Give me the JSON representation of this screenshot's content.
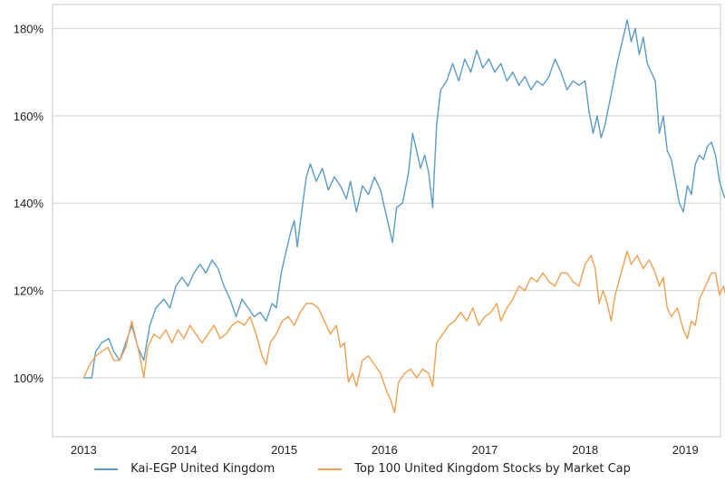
{
  "chart_data": {
    "type": "line",
    "title": "",
    "xlabel": "",
    "ylabel": "",
    "x_ticks": [
      2013,
      2014,
      2015,
      2016,
      2017,
      2018,
      2019
    ],
    "x_tick_labels": [
      "2013",
      "2014",
      "2015",
      "2016",
      "2017",
      "2018",
      "2019"
    ],
    "y_ticks": [
      100,
      120,
      140,
      160,
      180
    ],
    "y_tick_labels": [
      "100%",
      "120%",
      "140%",
      "160%",
      "180%"
    ],
    "xlim": [
      2012.69,
      2019.35
    ],
    "ylim": [
      86.5,
      185.5
    ],
    "grid": "horizontal",
    "legend_position": "bottom-center",
    "series": [
      {
        "name": "Kai-EGP United Kingdom",
        "color": "#5b9bc8",
        "points": [
          [
            2013.0,
            100
          ],
          [
            2013.08,
            100
          ],
          [
            2013.12,
            106
          ],
          [
            2013.18,
            108
          ],
          [
            2013.25,
            109
          ],
          [
            2013.3,
            106
          ],
          [
            2013.36,
            104
          ],
          [
            2013.42,
            108
          ],
          [
            2013.48,
            112
          ],
          [
            2013.54,
            107
          ],
          [
            2013.6,
            104
          ],
          [
            2013.66,
            112
          ],
          [
            2013.72,
            116
          ],
          [
            2013.8,
            118
          ],
          [
            2013.86,
            116
          ],
          [
            2013.92,
            121
          ],
          [
            2013.98,
            123
          ],
          [
            2014.04,
            121
          ],
          [
            2014.1,
            124
          ],
          [
            2014.16,
            126
          ],
          [
            2014.22,
            124
          ],
          [
            2014.28,
            127
          ],
          [
            2014.34,
            125
          ],
          [
            2014.4,
            121
          ],
          [
            2014.46,
            118
          ],
          [
            2014.52,
            114
          ],
          [
            2014.58,
            118
          ],
          [
            2014.64,
            116
          ],
          [
            2014.7,
            114
          ],
          [
            2014.76,
            115
          ],
          [
            2014.82,
            113
          ],
          [
            2014.88,
            117
          ],
          [
            2014.92,
            116
          ],
          [
            2014.97,
            124
          ],
          [
            2015.02,
            129
          ],
          [
            2015.06,
            133
          ],
          [
            2015.1,
            136
          ],
          [
            2015.13,
            130
          ],
          [
            2015.18,
            139
          ],
          [
            2015.22,
            146
          ],
          [
            2015.26,
            149
          ],
          [
            2015.32,
            145
          ],
          [
            2015.38,
            148
          ],
          [
            2015.44,
            143
          ],
          [
            2015.5,
            146
          ],
          [
            2015.56,
            144
          ],
          [
            2015.62,
            141
          ],
          [
            2015.66,
            145
          ],
          [
            2015.72,
            138
          ],
          [
            2015.78,
            144
          ],
          [
            2015.84,
            142
          ],
          [
            2015.9,
            146
          ],
          [
            2015.96,
            143
          ],
          [
            2016.02,
            137
          ],
          [
            2016.08,
            131
          ],
          [
            2016.12,
            139
          ],
          [
            2016.18,
            140
          ],
          [
            2016.24,
            147
          ],
          [
            2016.28,
            156
          ],
          [
            2016.32,
            152
          ],
          [
            2016.36,
            148
          ],
          [
            2016.4,
            151
          ],
          [
            2016.44,
            147
          ],
          [
            2016.48,
            139
          ],
          [
            2016.52,
            158
          ],
          [
            2016.56,
            166
          ],
          [
            2016.62,
            168
          ],
          [
            2016.68,
            172
          ],
          [
            2016.74,
            168
          ],
          [
            2016.8,
            173
          ],
          [
            2016.86,
            170
          ],
          [
            2016.92,
            175
          ],
          [
            2016.98,
            171
          ],
          [
            2017.04,
            173
          ],
          [
            2017.1,
            170
          ],
          [
            2017.16,
            172
          ],
          [
            2017.22,
            168
          ],
          [
            2017.28,
            170
          ],
          [
            2017.34,
            167
          ],
          [
            2017.4,
            169
          ],
          [
            2017.46,
            166
          ],
          [
            2017.52,
            168
          ],
          [
            2017.58,
            167
          ],
          [
            2017.64,
            169
          ],
          [
            2017.7,
            173
          ],
          [
            2017.76,
            170
          ],
          [
            2017.82,
            166
          ],
          [
            2017.88,
            168
          ],
          [
            2017.94,
            167
          ],
          [
            2018.0,
            168
          ],
          [
            2018.04,
            161
          ],
          [
            2018.08,
            156
          ],
          [
            2018.12,
            160
          ],
          [
            2018.16,
            155
          ],
          [
            2018.2,
            158
          ],
          [
            2018.26,
            165
          ],
          [
            2018.32,
            172
          ],
          [
            2018.38,
            178
          ],
          [
            2018.42,
            182
          ],
          [
            2018.46,
            177
          ],
          [
            2018.5,
            180
          ],
          [
            2018.54,
            174
          ],
          [
            2018.58,
            178
          ],
          [
            2018.62,
            172
          ],
          [
            2018.66,
            170
          ],
          [
            2018.7,
            168
          ],
          [
            2018.74,
            156
          ],
          [
            2018.78,
            160
          ],
          [
            2018.82,
            152
          ],
          [
            2018.86,
            150
          ],
          [
            2018.9,
            145
          ],
          [
            2018.94,
            140
          ],
          [
            2018.98,
            138
          ],
          [
            2019.02,
            144
          ],
          [
            2019.06,
            142
          ],
          [
            2019.1,
            149
          ],
          [
            2019.14,
            151
          ],
          [
            2019.18,
            150
          ],
          [
            2019.22,
            153
          ],
          [
            2019.26,
            154
          ],
          [
            2019.3,
            151
          ],
          [
            2019.34,
            145
          ],
          [
            2019.38,
            142
          ],
          [
            2019.4,
            141
          ]
        ]
      },
      {
        "name": "Top 100 United Kingdom Stocks by Market Cap",
        "color": "#f0a050",
        "points": [
          [
            2013.0,
            100
          ],
          [
            2013.06,
            103
          ],
          [
            2013.12,
            105
          ],
          [
            2013.18,
            106
          ],
          [
            2013.24,
            107
          ],
          [
            2013.3,
            104
          ],
          [
            2013.36,
            104
          ],
          [
            2013.42,
            107
          ],
          [
            2013.48,
            113
          ],
          [
            2013.52,
            109
          ],
          [
            2013.56,
            105
          ],
          [
            2013.6,
            100
          ],
          [
            2013.64,
            107
          ],
          [
            2013.7,
            110
          ],
          [
            2013.76,
            109
          ],
          [
            2013.82,
            111
          ],
          [
            2013.88,
            108
          ],
          [
            2013.94,
            111
          ],
          [
            2014.0,
            109
          ],
          [
            2014.06,
            112
          ],
          [
            2014.12,
            110
          ],
          [
            2014.18,
            108
          ],
          [
            2014.24,
            110
          ],
          [
            2014.3,
            112
          ],
          [
            2014.36,
            109
          ],
          [
            2014.42,
            110
          ],
          [
            2014.48,
            112
          ],
          [
            2014.54,
            113
          ],
          [
            2014.6,
            112
          ],
          [
            2014.66,
            114
          ],
          [
            2014.72,
            110
          ],
          [
            2014.78,
            105
          ],
          [
            2014.82,
            103
          ],
          [
            2014.86,
            108
          ],
          [
            2014.92,
            110
          ],
          [
            2014.98,
            113
          ],
          [
            2015.04,
            114
          ],
          [
            2015.1,
            112
          ],
          [
            2015.16,
            115
          ],
          [
            2015.22,
            117
          ],
          [
            2015.28,
            117
          ],
          [
            2015.34,
            116
          ],
          [
            2015.4,
            113
          ],
          [
            2015.46,
            110
          ],
          [
            2015.52,
            112
          ],
          [
            2015.56,
            107
          ],
          [
            2015.6,
            108
          ],
          [
            2015.64,
            99
          ],
          [
            2015.68,
            101
          ],
          [
            2015.72,
            98
          ],
          [
            2015.78,
            104
          ],
          [
            2015.84,
            105
          ],
          [
            2015.9,
            103
          ],
          [
            2015.96,
            101
          ],
          [
            2016.02,
            97
          ],
          [
            2016.06,
            95
          ],
          [
            2016.1,
            92
          ],
          [
            2016.14,
            99
          ],
          [
            2016.2,
            101
          ],
          [
            2016.26,
            102
          ],
          [
            2016.32,
            100
          ],
          [
            2016.38,
            102
          ],
          [
            2016.44,
            101
          ],
          [
            2016.48,
            98
          ],
          [
            2016.52,
            108
          ],
          [
            2016.58,
            110
          ],
          [
            2016.64,
            112
          ],
          [
            2016.7,
            113
          ],
          [
            2016.76,
            115
          ],
          [
            2016.82,
            113
          ],
          [
            2016.88,
            116
          ],
          [
            2016.94,
            112
          ],
          [
            2017.0,
            114
          ],
          [
            2017.06,
            115
          ],
          [
            2017.12,
            117
          ],
          [
            2017.16,
            113
          ],
          [
            2017.22,
            116
          ],
          [
            2017.28,
            118
          ],
          [
            2017.34,
            121
          ],
          [
            2017.4,
            120
          ],
          [
            2017.46,
            123
          ],
          [
            2017.52,
            122
          ],
          [
            2017.58,
            124
          ],
          [
            2017.64,
            122
          ],
          [
            2017.7,
            121
          ],
          [
            2017.76,
            124
          ],
          [
            2017.82,
            124
          ],
          [
            2017.88,
            122
          ],
          [
            2017.94,
            121
          ],
          [
            2018.0,
            126
          ],
          [
            2018.06,
            128
          ],
          [
            2018.1,
            125
          ],
          [
            2018.14,
            117
          ],
          [
            2018.18,
            120
          ],
          [
            2018.22,
            117
          ],
          [
            2018.26,
            113
          ],
          [
            2018.3,
            119
          ],
          [
            2018.36,
            124
          ],
          [
            2018.42,
            129
          ],
          [
            2018.46,
            126
          ],
          [
            2018.52,
            128
          ],
          [
            2018.58,
            125
          ],
          [
            2018.64,
            127
          ],
          [
            2018.7,
            124
          ],
          [
            2018.74,
            121
          ],
          [
            2018.78,
            123
          ],
          [
            2018.82,
            116
          ],
          [
            2018.86,
            114
          ],
          [
            2018.92,
            116
          ],
          [
            2018.98,
            111
          ],
          [
            2019.02,
            109
          ],
          [
            2019.06,
            113
          ],
          [
            2019.1,
            112
          ],
          [
            2019.14,
            118
          ],
          [
            2019.2,
            121
          ],
          [
            2019.26,
            124
          ],
          [
            2019.3,
            124
          ],
          [
            2019.34,
            119
          ],
          [
            2019.38,
            121
          ],
          [
            2019.4,
            119
          ]
        ]
      }
    ]
  },
  "legend": {
    "items": [
      {
        "label": "Kai-EGP United Kingdom",
        "color": "#5b9bc8"
      },
      {
        "label": "Top 100 United Kingdom Stocks by Market Cap",
        "color": "#f0a050"
      }
    ]
  }
}
